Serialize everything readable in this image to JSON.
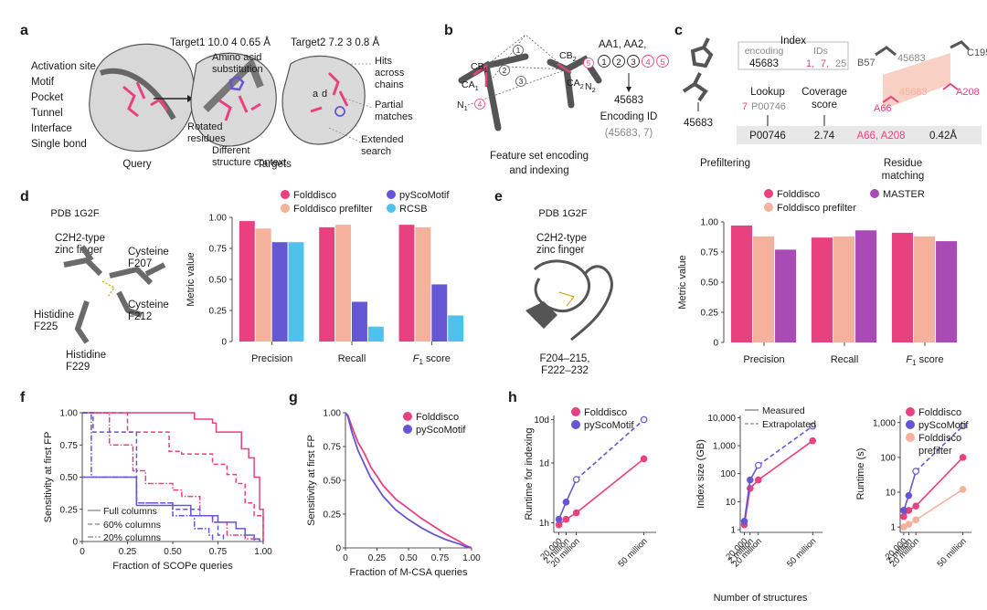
{
  "colors": {
    "folddisco": "#e9407f",
    "prefilter": "#f4b19c",
    "pyscomotif": "#6556d4",
    "rcsb": "#4ec1ec",
    "master": "#a94bb4",
    "grey_struct": "#7a7a7a",
    "pink": "#e8437e",
    "text": "#1a1a1a",
    "grey_text": "#8a8a8a"
  },
  "panel_letters": [
    "a",
    "b",
    "c",
    "d",
    "e",
    "f",
    "g",
    "h"
  ],
  "panel_a": {
    "query_features": [
      "Activation site",
      "Motif",
      "Pocket",
      "Tunnel",
      "Interface",
      "Single bond"
    ],
    "query_caption": "Query",
    "target1_header": "Target1  10.0   4   0.65 Å",
    "target2_header": "Target2  7.2   3   0.8 Å",
    "amino_acid_substitution": [
      "Amino acid",
      "substitution"
    ],
    "rotated_residues": [
      "Rotated",
      "residues"
    ],
    "different_context": [
      "Different",
      "structure context"
    ],
    "targets_caption": "Targets",
    "hits_across_chains": [
      "Hits",
      "across",
      "chains"
    ],
    "partial_matches": [
      "Partial",
      "matches"
    ],
    "extended_search": [
      "Extended",
      "search"
    ],
    "label_a": "a",
    "label_d": "d"
  },
  "panel_b": {
    "atoms": [
      "CB",
      "CA",
      "N",
      "CB",
      "CA",
      "N"
    ],
    "atom_subs": [
      "1",
      "1",
      "1",
      "2",
      "2",
      "2"
    ],
    "edge_numbers": [
      "1",
      "2",
      "3",
      "4",
      "5"
    ],
    "feature_header": "AA1, AA2,",
    "feature_list": [
      "1",
      "2",
      "3",
      "4",
      "5"
    ],
    "encoding_value": "45683",
    "encoding_id_label": "Encoding ID",
    "encoding_id_tuple": "(45683,   7)",
    "caption": [
      "Feature set encoding",
      "and indexing"
    ]
  },
  "panel_c": {
    "index_title": "Index",
    "encoding_header": "encoding",
    "ids_header": "IDs",
    "index_encoding": "45683",
    "index_ids": [
      "1",
      "7",
      "25"
    ],
    "lookup_label": "Lookup",
    "lookup_id": "7",
    "lookup_code": "P00746",
    "coverage_label": [
      "Coverage",
      "score"
    ],
    "left_code": "45683",
    "result_row": [
      "P00746",
      "2.74",
      "A66, A208",
      "0.42Å"
    ],
    "residues": [
      "B57",
      "45683",
      "C195",
      "45683",
      "A208",
      "A66"
    ],
    "prefiltering_caption": "Prefiltering",
    "residue_matching_caption": [
      "Residue",
      "matching"
    ]
  },
  "panel_d": {
    "pdb_label": "PDB 1G2F",
    "motif_label": [
      "C2H2-type",
      "zinc finger"
    ],
    "residue_labels": [
      [
        "Cysteine",
        "F207"
      ],
      [
        "Histidine",
        "F225"
      ],
      [
        "Cysteine",
        "F212"
      ],
      [
        "Histidine",
        "F229"
      ]
    ]
  },
  "panel_e": {
    "pdb_label": "PDB 1G2F",
    "motif_label": [
      "C2H2-type",
      "zinc finger"
    ],
    "range_label": [
      "F204–215,",
      "F222–232"
    ]
  },
  "h_xlabel": "Number of structures",
  "chart_data": [
    {
      "id": "d",
      "type": "bar",
      "categories": [
        "Precision",
        "Recall",
        "F1 score"
      ],
      "series": [
        {
          "name": "Folddisco",
          "values": [
            0.97,
            0.92,
            0.94
          ]
        },
        {
          "name": "Folddisco prefilter",
          "values": [
            0.91,
            0.94,
            0.92
          ]
        },
        {
          "name": "pyScoMotif",
          "values": [
            0.8,
            0.32,
            0.46
          ]
        },
        {
          "name": "RCSB",
          "values": [
            0.8,
            0.12,
            0.21
          ]
        }
      ],
      "ylabel": "Metric value",
      "ylim": [
        0,
        1
      ],
      "yticks": [
        "0",
        "0.25",
        "0.50",
        "0.75",
        "1.00"
      ],
      "legend": "top"
    },
    {
      "id": "e",
      "type": "bar",
      "categories": [
        "Precision",
        "Recall",
        "F1 score"
      ],
      "series": [
        {
          "name": "Folddisco",
          "values": [
            0.97,
            0.87,
            0.91
          ]
        },
        {
          "name": "Folddisco prefilter",
          "values": [
            0.88,
            0.88,
            0.88
          ]
        },
        {
          "name": "MASTER",
          "values": [
            0.77,
            0.93,
            0.84
          ]
        }
      ],
      "ylabel": "Metric value",
      "ylim": [
        0,
        1
      ],
      "yticks": [
        "0",
        "0.25",
        "0.50",
        "0.75",
        "1.00"
      ],
      "legend": "top"
    },
    {
      "id": "f",
      "type": "line",
      "xlabel": "Fraction of SCOPe queries",
      "ylabel": "Sensitivity at first FP",
      "xlim": [
        0,
        1
      ],
      "ylim": [
        0,
        1
      ],
      "xticks": [
        "0",
        "0.25",
        "0.50",
        "0.75",
        "1.00"
      ],
      "yticks": [
        "0",
        "0.25",
        "0.50",
        "0.75",
        "1.00"
      ],
      "legend_entries": [
        "Full columns",
        "60% columns",
        "20% columns"
      ],
      "series": [
        {
          "name": "Folddisco Full columns",
          "color": "folddisco",
          "dash": "solid",
          "x": [
            0,
            0.6,
            0.62,
            0.72,
            0.74,
            0.82,
            0.88,
            0.92,
            0.95,
            0.98,
            1.0
          ],
          "y": [
            1.0,
            1.0,
            0.95,
            0.92,
            0.85,
            0.85,
            0.72,
            0.65,
            0.5,
            0.25,
            0.0
          ]
        },
        {
          "name": "Folddisco 60% columns",
          "color": "folddisco",
          "dash": "dash",
          "x": [
            0,
            0.22,
            0.25,
            0.32,
            0.48,
            0.55,
            0.72,
            0.8,
            0.85,
            0.9,
            0.95,
            1.0
          ],
          "y": [
            1.0,
            1.0,
            0.85,
            0.85,
            0.7,
            0.68,
            0.6,
            0.52,
            0.45,
            0.3,
            0.2,
            0.0
          ]
        },
        {
          "name": "Folddisco 20% columns",
          "color": "folddisco",
          "dash": "dashdot",
          "x": [
            0,
            0.12,
            0.15,
            0.22,
            0.28,
            0.35,
            0.5,
            0.55,
            0.65,
            0.72,
            0.8,
            0.9,
            0.95
          ],
          "y": [
            1.0,
            1.0,
            0.75,
            0.75,
            0.55,
            0.45,
            0.4,
            0.35,
            0.2,
            0.15,
            0.05,
            0.02,
            0.0
          ]
        },
        {
          "name": "pyScoMotif Full columns",
          "color": "pyscomotif",
          "dash": "solid",
          "x": [
            0,
            0.28,
            0.3,
            0.5,
            0.6,
            0.75,
            0.85,
            0.9,
            0.95,
            0.98
          ],
          "y": [
            0.5,
            0.5,
            0.28,
            0.28,
            0.2,
            0.15,
            0.1,
            0.05,
            0.02,
            0.0
          ]
        },
        {
          "name": "pyScoMotif 60% columns",
          "color": "pyscomotif",
          "dash": "dash",
          "x": [
            0,
            0.05,
            0.06,
            0.3,
            0.5,
            0.65,
            0.72,
            0.75,
            0.78
          ],
          "y": [
            1.0,
            1.0,
            0.85,
            0.3,
            0.25,
            0.2,
            0.15,
            0.05,
            0.0
          ]
        },
        {
          "name": "pyScoMotif 20% columns",
          "color": "pyscomotif",
          "dash": "dashdot",
          "x": [
            0,
            0.02,
            0.05,
            0.3,
            0.5,
            0.62,
            0.7,
            0.72
          ],
          "y": [
            1.0,
            1.0,
            0.5,
            0.3,
            0.2,
            0.1,
            0.05,
            0.0
          ]
        }
      ]
    },
    {
      "id": "g",
      "type": "line",
      "xlabel": "Fraction of M-CSA queries",
      "ylabel": "Sensitivity at first FP",
      "xlim": [
        0,
        1
      ],
      "ylim": [
        0,
        1
      ],
      "xticks": [
        "0",
        "0.25",
        "0.50",
        "0.75",
        "1.00"
      ],
      "yticks": [
        "0",
        "0.25",
        "0.50",
        "0.75",
        "1.00"
      ],
      "legend": "top-right",
      "series": [
        {
          "name": "Folddisco",
          "x": [
            0,
            0.02,
            0.05,
            0.1,
            0.15,
            0.2,
            0.25,
            0.3,
            0.4,
            0.5,
            0.6,
            0.7,
            0.8,
            0.9,
            0.95,
            1.0
          ],
          "y": [
            1.0,
            0.98,
            0.9,
            0.78,
            0.7,
            0.6,
            0.53,
            0.46,
            0.36,
            0.29,
            0.22,
            0.16,
            0.1,
            0.05,
            0.02,
            0.0
          ]
        },
        {
          "name": "pyScoMotif",
          "x": [
            0,
            0.02,
            0.05,
            0.1,
            0.15,
            0.2,
            0.25,
            0.3,
            0.4,
            0.5,
            0.6,
            0.7,
            0.8,
            0.9,
            0.95,
            1.0
          ],
          "y": [
            1.0,
            0.97,
            0.86,
            0.72,
            0.62,
            0.52,
            0.45,
            0.38,
            0.28,
            0.21,
            0.15,
            0.1,
            0.06,
            0.03,
            0.01,
            0.0
          ]
        }
      ]
    },
    {
      "id": "h1",
      "type": "line",
      "ylabel": "Runtime for indexing",
      "yticks": [
        "1h",
        "1d",
        "10d"
      ],
      "xticks": [
        "20,000",
        "2 million",
        "20 million",
        "50 million"
      ],
      "log_y": true,
      "legend": "top-left",
      "series": [
        {
          "name": "Folddisco",
          "x": [
            0.02,
            0.5,
            2,
            50
          ],
          "y": [
            0.9,
            1.2,
            1.7,
            30
          ]
        },
        {
          "name": "pyScoMotif",
          "x": [
            0.02,
            0.5,
            2,
            50
          ],
          "y": [
            1.2,
            3,
            10,
            240
          ],
          "extrapolated_from": 2
        }
      ]
    },
    {
      "id": "h2",
      "type": "line",
      "ylabel": "Index size (GB)",
      "yticks": [
        "1",
        "10",
        "100",
        "1,000",
        "10,000"
      ],
      "xticks": [
        "20,000",
        "2 million",
        "20 million",
        "50 million"
      ],
      "log_y": true,
      "legend_entries": [
        "Measured",
        "Extrapolated"
      ],
      "series": [
        {
          "name": "Folddisco",
          "x": [
            0.02,
            0.5,
            2,
            50
          ],
          "y": [
            1.5,
            30,
            60,
            1500
          ]
        },
        {
          "name": "pyScoMotif",
          "x": [
            0.02,
            0.5,
            2,
            50
          ],
          "y": [
            2,
            60,
            200,
            5000
          ],
          "extrapolated_from": 2
        }
      ]
    },
    {
      "id": "h3",
      "type": "line",
      "ylabel": "Runtime (s)",
      "yticks": [
        "1",
        "10",
        "100",
        "1,000"
      ],
      "xticks": [
        "20,000",
        "2 million",
        "20 million",
        "50 million"
      ],
      "log_y": true,
      "legend": "top-left",
      "series": [
        {
          "name": "Folddisco",
          "x": [
            0.02,
            0.5,
            2,
            50
          ],
          "y": [
            2,
            3,
            4,
            100
          ]
        },
        {
          "name": "pyScoMotif",
          "x": [
            0.02,
            0.5,
            2,
            50
          ],
          "y": [
            3,
            8,
            40,
            800
          ],
          "extrapolated_from": 2
        },
        {
          "name": "Folddisco prefilter",
          "x": [
            0.02,
            0.5,
            2,
            50
          ],
          "y": [
            1,
            1.2,
            1.6,
            12
          ]
        }
      ]
    }
  ]
}
